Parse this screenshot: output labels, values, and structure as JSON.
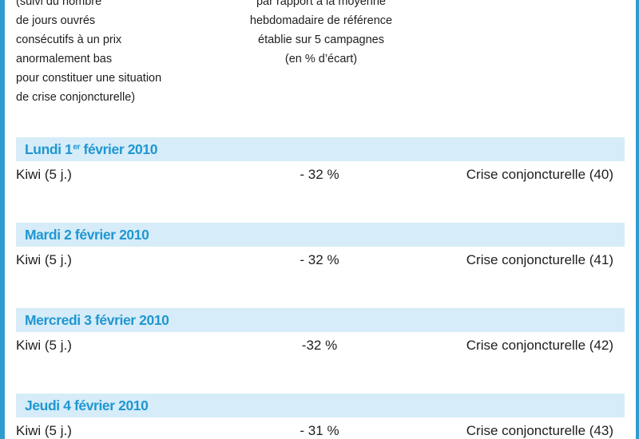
{
  "header": {
    "col1_lines": [
      "(suivi du nombre",
      "de jours ouvrés",
      "consécutifs à un prix",
      "anormalement bas",
      "pour constituer une situation",
      "de crise conjoncturelle)"
    ],
    "col2_lines": [
      "par rapport à la moyenne",
      "hebdomadaire de référence",
      "établie sur 5 campagnes",
      "(en % d’écart)"
    ]
  },
  "days": [
    {
      "date_before_sup": "Lundi 1",
      "date_sup": "er",
      "date_after_sup": " février 2010",
      "product": "Kiwi (5 j.)",
      "gap": "- 32 %",
      "status": "Crise conjoncturelle (40)"
    },
    {
      "date_before_sup": "Mardi 2 février 2010",
      "date_sup": "",
      "date_after_sup": "",
      "product": "Kiwi (5 j.)",
      "gap": "- 32 %",
      "status": "Crise conjoncturelle (41)"
    },
    {
      "date_before_sup": "Mercredi 3 février 2010",
      "date_sup": "",
      "date_after_sup": "",
      "product": "Kiwi (5 j.)",
      "gap": "-32 %",
      "status": "Crise conjoncturelle (42)"
    },
    {
      "date_before_sup": "Jeudi 4 février 2010",
      "date_sup": "",
      "date_after_sup": "",
      "product": "Kiwi (5 j.)",
      "gap": "- 31 %",
      "status": "Crise conjoncturelle (43)"
    }
  ],
  "colors": {
    "frame": "#2f9ccf",
    "band": "#d6ecf8",
    "band_text": "#1f97d1"
  }
}
